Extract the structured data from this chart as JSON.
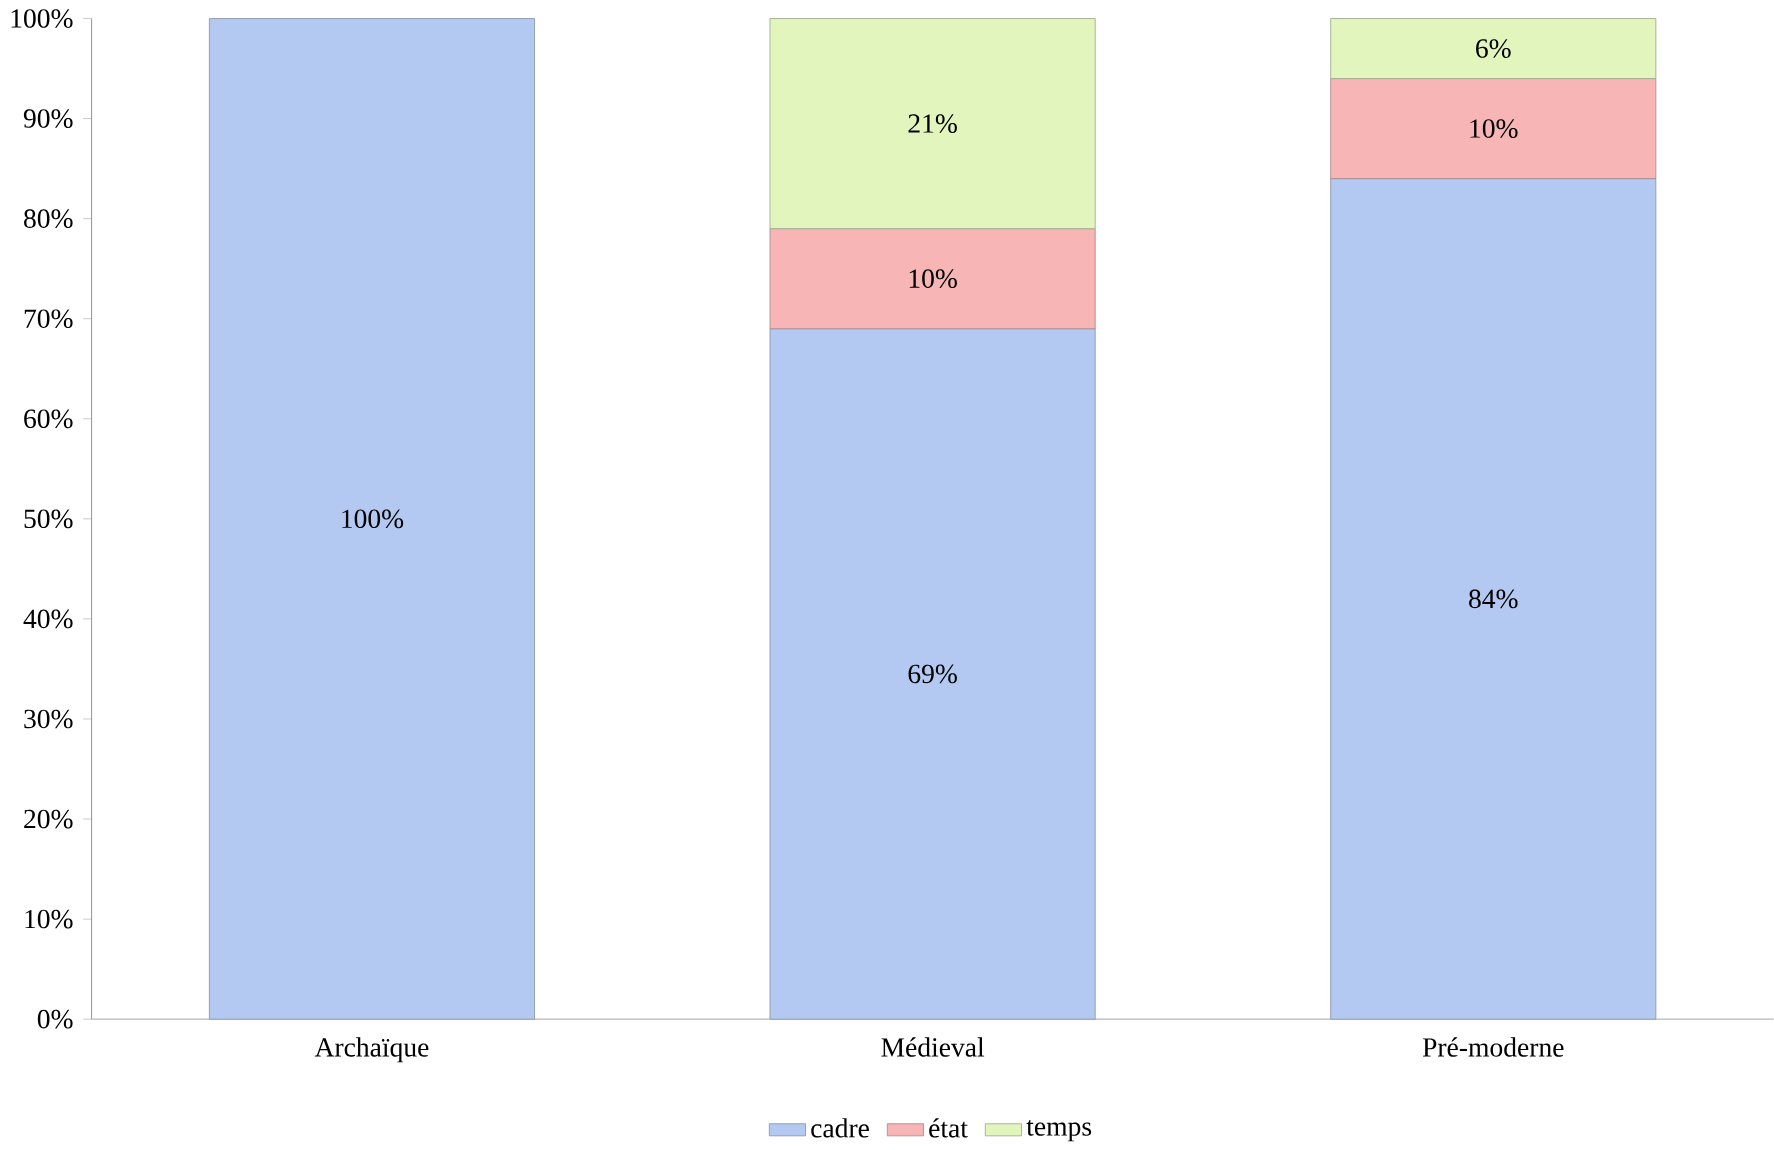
{
  "chart_data": {
    "type": "bar",
    "stacked": true,
    "categories": [
      "Archaïque",
      "Médieval",
      "Pré-moderne"
    ],
    "series": [
      {
        "name": "cadre",
        "color": "#b3c9f2",
        "values": [
          100,
          69,
          84
        ],
        "value_labels": [
          "100%",
          "69%",
          "84%"
        ]
      },
      {
        "name": "état",
        "color": "#f7b5b5",
        "values": [
          null,
          10,
          10
        ],
        "value_labels": [
          null,
          "10%",
          "10%"
        ]
      },
      {
        "name": "temps",
        "color": "#e2f5bd",
        "values": [
          null,
          21,
          6
        ],
        "value_labels": [
          null,
          "21%",
          "6%"
        ]
      }
    ],
    "ylim": [
      0,
      100
    ],
    "yticks": [
      {
        "value": 0,
        "label": "0%"
      },
      {
        "value": 10,
        "label": "10%"
      },
      {
        "value": 20,
        "label": "20%"
      },
      {
        "value": 30,
        "label": "30%"
      },
      {
        "value": 40,
        "label": "40%"
      },
      {
        "value": 50,
        "label": "50%"
      },
      {
        "value": 60,
        "label": "60%"
      },
      {
        "value": 70,
        "label": "70%"
      },
      {
        "value": 80,
        "label": "80%"
      },
      {
        "value": 90,
        "label": "90%"
      },
      {
        "value": 100,
        "label": "100%"
      }
    ],
    "legend": "bottom"
  }
}
